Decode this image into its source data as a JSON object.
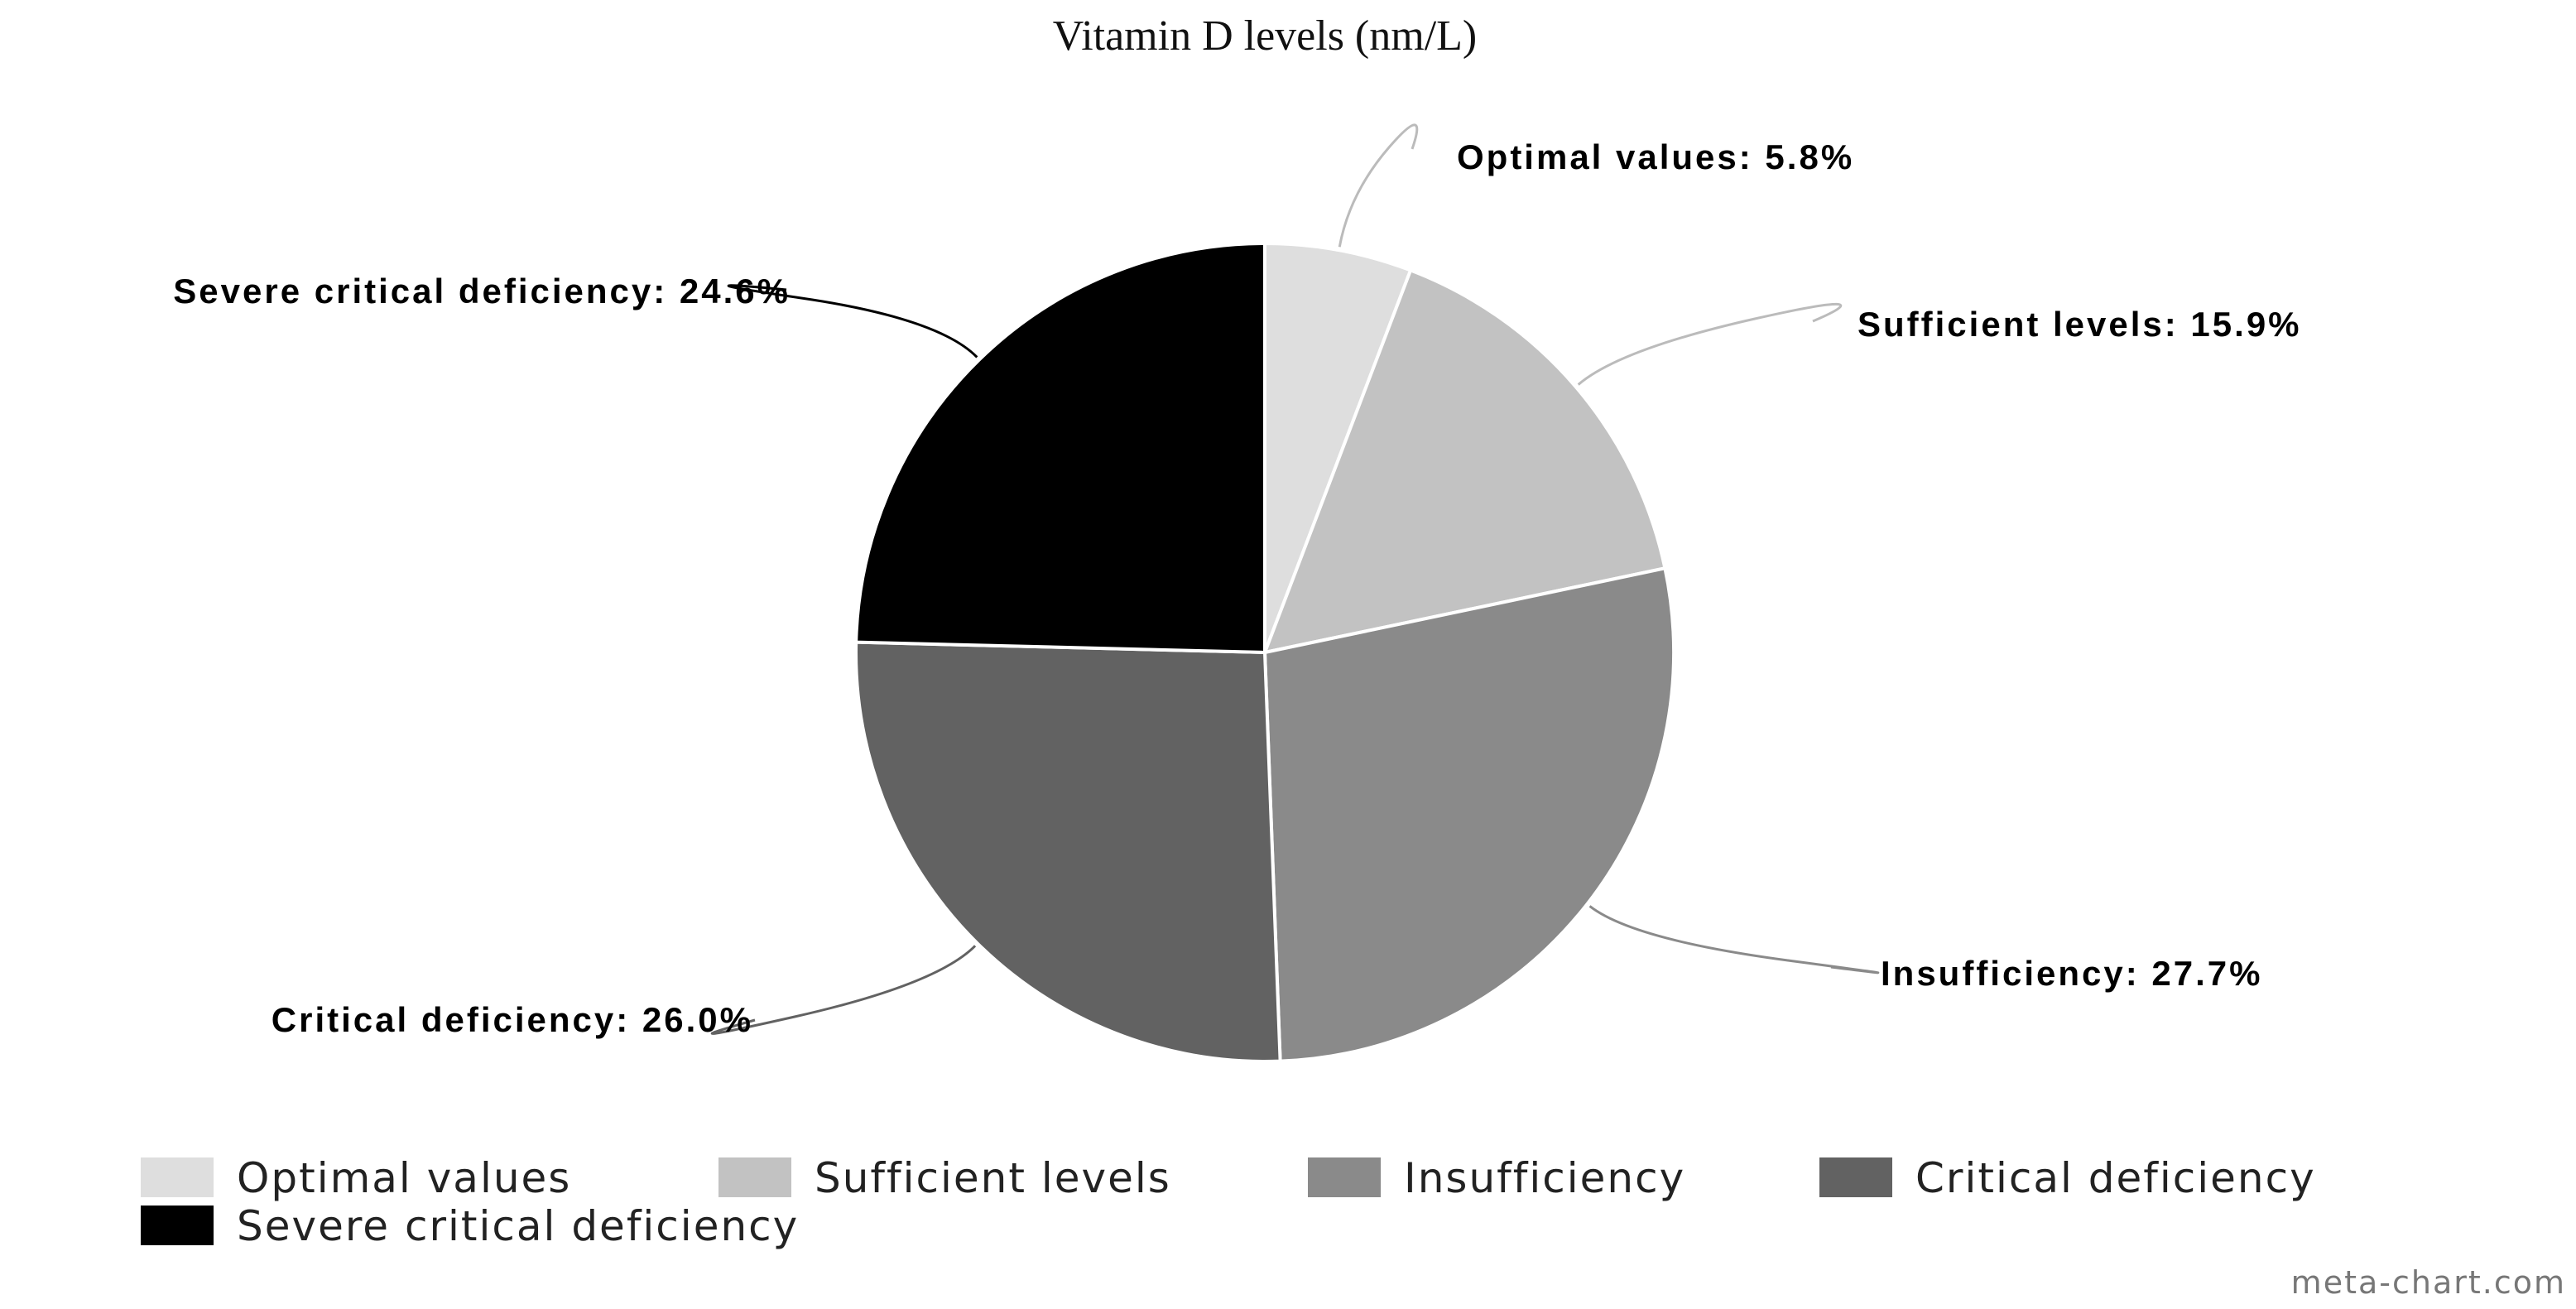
{
  "chart_data": {
    "type": "pie",
    "title": "Vitamin D levels (nm/L)",
    "slices": [
      {
        "name": "Optimal values",
        "value": 5.8,
        "label": "Optimal values: 5.8%",
        "color": "#dedede",
        "leader": "#bbbbbb"
      },
      {
        "name": "Sufficient levels",
        "value": 15.9,
        "label": "Sufficient levels: 15.9%",
        "color": "#c2c2c2",
        "leader": "#bbbbbb"
      },
      {
        "name": "Insufficiency",
        "value": 27.7,
        "label": "Insufficiency: 27.7%",
        "color": "#8a8a8a",
        "leader": "#8a8a8a"
      },
      {
        "name": "Critical deficiency",
        "value": 26.0,
        "label": "Critical deficiency: 26.0%",
        "color": "#626262",
        "leader": "#626262"
      },
      {
        "name": "Severe critical deficiency",
        "value": 24.6,
        "label": "Severe critical deficiency: 24.6%",
        "color": "#000000",
        "leader": "#000000"
      }
    ],
    "legend_position": "bottom"
  },
  "credit": "meta-chart.com"
}
